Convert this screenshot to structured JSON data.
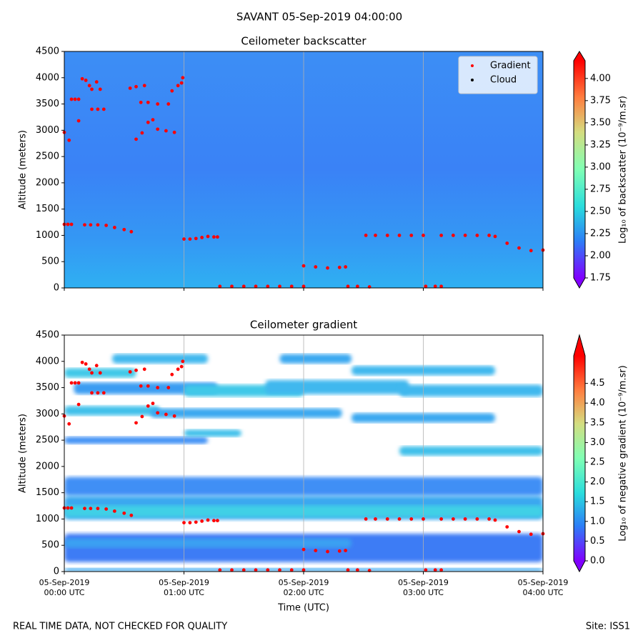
{
  "suptitle": "SAVANT 05-Sep-2019 04:00:00",
  "footer_left": "REAL TIME DATA, NOT CHECKED FOR QUALITY",
  "footer_right": "Site: ISS1",
  "chart_data": [
    {
      "type": "scatter",
      "title": "Ceilometer backscatter",
      "ylabel": "Altitude (meters)",
      "xlim": [
        0,
        4
      ],
      "ylim": [
        0,
        4500
      ],
      "xticks": [
        0,
        1,
        2,
        3,
        4
      ],
      "yticks": [
        0,
        500,
        1000,
        1500,
        2000,
        2500,
        3000,
        3500,
        4000,
        4500
      ],
      "grid": "x",
      "legend": "upper right",
      "colorbar": {
        "label": "Log₁₀ of backscatter (10⁻⁹/m.sr)",
        "colormap": "rainbow",
        "lim": [
          1.75,
          4.2
        ],
        "ticks": [
          1.75,
          {
            "value": 2,
            "label": "2.00"
          },
          2.25,
          {
            "value": 2.5,
            "label": "2.50"
          },
          2.75,
          {
            "value": 3,
            "label": "3.00"
          },
          3.25,
          {
            "value": 3.5,
            "label": "3.50"
          },
          3.75,
          {
            "value": 4,
            "label": "4.00"
          }
        ]
      },
      "series": [
        {
          "name": "Gradient",
          "color": "#ff0000",
          "x": [
            0,
            0.04,
            0,
            0.03,
            0.06,
            0.17,
            0.22,
            0.28,
            0.35,
            0.42,
            0.5,
            0.56,
            0.06,
            0.09,
            0.12,
            0.12,
            0.15,
            0.18,
            0.21,
            0.23,
            0.27,
            0.3,
            0.23,
            0.28,
            0.33,
            0.55,
            0.6,
            0.67,
            0.64,
            0.7,
            0.6,
            0.65,
            0.7,
            0.74,
            0.78,
            0.78,
            0.85,
            0.92,
            0.87,
            0.9,
            0.95,
            0.98,
            0.99,
            1.0,
            1.05,
            1.1,
            1.15,
            1.2,
            1.25,
            1.28,
            1.3,
            1.4,
            1.5,
            1.6,
            1.7,
            1.8,
            1.9,
            2.0,
            2.0,
            2.1,
            2.2,
            2.3,
            2.35,
            2.37,
            2.45,
            2.55,
            2.52,
            2.6,
            2.7,
            2.8,
            2.9,
            3.0,
            3.02,
            3.1,
            3.15,
            3.15,
            3.25,
            3.35,
            3.45,
            3.55,
            3.6,
            3.7,
            3.8,
            3.9,
            4.0
          ],
          "y": [
            2960,
            2810,
            1210,
            1210,
            1210,
            1200,
            1200,
            1200,
            1190,
            1150,
            1110,
            1070,
            3590,
            3590,
            3590,
            3180,
            3980,
            3950,
            3850,
            3780,
            3920,
            3780,
            3400,
            3400,
            3400,
            3800,
            3830,
            3850,
            3530,
            3530,
            2830,
            2950,
            3150,
            3200,
            3500,
            3020,
            2990,
            2960,
            3500,
            3750,
            3850,
            3900,
            4000,
            930,
            930,
            940,
            960,
            980,
            970,
            970,
            30,
            30,
            30,
            30,
            30,
            30,
            30,
            30,
            420,
            400,
            380,
            390,
            400,
            30,
            30,
            20,
            1000,
            1000,
            1000,
            1000,
            1000,
            1000,
            30,
            30,
            30,
            1000,
            1000,
            1000,
            1000,
            1000,
            980,
            850,
            760,
            710,
            720
          ]
        },
        {
          "name": "Cloud",
          "color": "#000000",
          "x": [],
          "y": []
        }
      ]
    },
    {
      "type": "scatter",
      "title": "Ceilometer gradient",
      "ylabel": "Altitude (meters)",
      "xlabel": "Time (UTC)",
      "xlim": [
        0,
        4
      ],
      "xticks": [
        {
          "value": 0,
          "label": [
            "05-Sep-2019",
            "00:00 UTC"
          ]
        },
        {
          "value": 1,
          "label": [
            "05-Sep-2019",
            "01:00 UTC"
          ]
        },
        {
          "value": 2,
          "label": [
            "05-Sep-2019",
            "02:00 UTC"
          ]
        },
        {
          "value": 3,
          "label": [
            "05-Sep-2019",
            "03:00 UTC"
          ]
        },
        {
          "value": 4,
          "label": [
            "05-Sep-2019",
            "04:00 UTC"
          ]
        }
      ],
      "ylim": [
        0,
        4500
      ],
      "yticks": [
        0,
        500,
        1000,
        1500,
        2000,
        2500,
        3000,
        3500,
        4000,
        4500
      ],
      "grid": "x",
      "colorbar": {
        "label": "Log₁₀ of negative gradient (10⁻⁹/m.sr)",
        "colormap": "rainbow",
        "lim": [
          0,
          5.2
        ],
        "ticks": [
          {
            "value": 0,
            "label": "0.0"
          },
          0.5,
          {
            "value": 1,
            "label": "1.0"
          },
          1.5,
          {
            "value": 2,
            "label": "2.0"
          },
          2.5,
          {
            "value": 3,
            "label": "3.0"
          },
          3.5,
          {
            "value": 4,
            "label": "4.0"
          },
          4.5
        ]
      },
      "series": [
        {
          "color": "#ff0000",
          "x": [
            0,
            0.04,
            0,
            0.03,
            0.06,
            0.17,
            0.22,
            0.28,
            0.35,
            0.42,
            0.5,
            0.56,
            0.06,
            0.09,
            0.12,
            0.12,
            0.15,
            0.18,
            0.21,
            0.23,
            0.27,
            0.3,
            0.23,
            0.28,
            0.33,
            0.55,
            0.6,
            0.67,
            0.64,
            0.7,
            0.6,
            0.65,
            0.7,
            0.74,
            0.78,
            0.78,
            0.85,
            0.92,
            0.87,
            0.9,
            0.95,
            0.98,
            0.99,
            1.0,
            1.05,
            1.1,
            1.15,
            1.2,
            1.25,
            1.28,
            1.3,
            1.4,
            1.5,
            1.6,
            1.7,
            1.8,
            1.9,
            2.0,
            2.0,
            2.1,
            2.2,
            2.3,
            2.35,
            2.37,
            2.45,
            2.55,
            2.52,
            2.6,
            2.7,
            2.8,
            2.9,
            3.0,
            3.02,
            3.1,
            3.15,
            3.15,
            3.25,
            3.35,
            3.45,
            3.55,
            3.6,
            3.7,
            3.8,
            3.9,
            4.0
          ],
          "y": [
            2960,
            2810,
            1210,
            1210,
            1210,
            1200,
            1200,
            1200,
            1190,
            1150,
            1110,
            1070,
            3590,
            3590,
            3590,
            3180,
            3980,
            3950,
            3850,
            3780,
            3920,
            3780,
            3400,
            3400,
            3400,
            3800,
            3830,
            3850,
            3530,
            3530,
            2830,
            2950,
            3150,
            3200,
            3500,
            3020,
            2990,
            2960,
            3500,
            3750,
            3850,
            3900,
            4000,
            930,
            930,
            940,
            960,
            980,
            970,
            970,
            30,
            30,
            30,
            30,
            30,
            30,
            30,
            30,
            420,
            400,
            380,
            390,
            400,
            30,
            30,
            20,
            1000,
            1000,
            1000,
            1000,
            1000,
            1000,
            30,
            30,
            30,
            1000,
            1000,
            1000,
            1000,
            1000,
            980,
            850,
            760,
            710,
            720
          ]
        }
      ]
    }
  ]
}
